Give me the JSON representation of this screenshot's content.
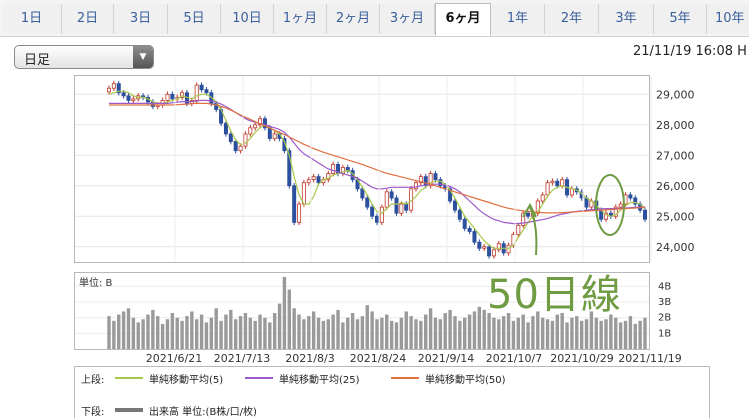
{
  "tabs": [
    {
      "label": "1日",
      "active": false
    },
    {
      "label": "2日",
      "active": false
    },
    {
      "label": "3日",
      "active": false
    },
    {
      "label": "5日",
      "active": false
    },
    {
      "label": "10日",
      "active": false
    },
    {
      "label": "1ヶ月",
      "active": false
    },
    {
      "label": "2ヶ月",
      "active": false
    },
    {
      "label": "3ヶ月",
      "active": false
    },
    {
      "label": "6ヶ月",
      "active": true
    },
    {
      "label": "1年",
      "active": false
    },
    {
      "label": "2年",
      "active": false
    },
    {
      "label": "3年",
      "active": false
    },
    {
      "label": "5年",
      "active": false
    },
    {
      "label": "10年",
      "active": false
    }
  ],
  "period_select": {
    "value": "日足"
  },
  "timestamp": "21/11/19 16:08 H",
  "annotation": "50日線",
  "colors": {
    "up": "#ffffff",
    "down": "#2c4f9e",
    "candle_up_border": "#c0392b",
    "ma5": "#a7c84a",
    "ma25": "#9b59c9",
    "ma50": "#e07040",
    "volume": "#9a9a9a",
    "annotation": "#6f9b43"
  },
  "chart_data": [
    {
      "type": "candlestick",
      "title": "",
      "y_ticks": [
        "29,000",
        "28,000",
        "27,000",
        "26,000",
        "25,000",
        "24,000"
      ],
      "ylim": [
        23500,
        29600
      ],
      "x_ticks": [
        "2021/6/21",
        "2021/7/13",
        "2021/8/3",
        "2021/8/24",
        "2021/9/14",
        "2021/10/7",
        "2021/10/29",
        "2021/11/19"
      ],
      "close": [
        29200,
        29350,
        29050,
        28950,
        28800,
        28850,
        28950,
        28900,
        28750,
        28600,
        28650,
        28800,
        29000,
        28850,
        28900,
        29050,
        28700,
        28800,
        29300,
        29150,
        29050,
        28700,
        28500,
        28050,
        27700,
        27450,
        27150,
        27300,
        27700,
        27900,
        28000,
        28200,
        27900,
        27550,
        27700,
        27550,
        27150,
        26000,
        24800,
        25400,
        26100,
        26200,
        26300,
        26100,
        26200,
        26400,
        26700,
        26400,
        26600,
        26500,
        26200,
        25900,
        25600,
        25300,
        25000,
        24800,
        25300,
        25800,
        25600,
        25100,
        25400,
        25200,
        25900,
        26100,
        26300,
        26000,
        26400,
        26200,
        26000,
        25900,
        25500,
        25200,
        24900,
        24600,
        24500,
        24150,
        23950,
        24000,
        23700,
        23900,
        24100,
        23800,
        24050,
        24400,
        24700,
        25100,
        25000,
        25100,
        25500,
        25700,
        26100,
        26150,
        26000,
        26200,
        25700,
        25900,
        25800,
        25600,
        25300,
        25500,
        25200,
        24900,
        25100,
        25000,
        25300,
        25400,
        25700,
        25600,
        25400,
        25200,
        24900
      ],
      "ma5": [
        29000,
        29050,
        29100,
        29100,
        29050,
        28950,
        28900,
        28900,
        28850,
        28750,
        28700,
        28700,
        28750,
        28800,
        28850,
        28950,
        28900,
        28850,
        28950,
        29000,
        29000,
        28900,
        28750,
        28500,
        28150,
        27800,
        27500,
        27350,
        27400,
        27550,
        27750,
        27900,
        28000,
        27900,
        27800,
        27700,
        27450,
        27000,
        26300,
        25700,
        25400,
        25400,
        25650,
        26050,
        26200,
        26250,
        26350,
        26400,
        26450,
        26500,
        26400,
        26200,
        25950,
        25700,
        25400,
        25150,
        25100,
        25250,
        25400,
        25400,
        25450,
        25400,
        25500,
        25650,
        25850,
        25950,
        26100,
        26150,
        26150,
        26050,
        25850,
        25600,
        25300,
        25000,
        24800,
        24600,
        24400,
        24200,
        24050,
        23950,
        23950,
        23950,
        23950,
        24050,
        24300,
        24550,
        24800,
        25000,
        25150,
        25400,
        25650,
        25850,
        25950,
        26000,
        25950,
        25900,
        25850,
        25750,
        25600,
        25500,
        25350,
        25200,
        25050,
        25000,
        25050,
        25200,
        25350,
        25450,
        25450,
        25400,
        25250
      ],
      "ma25": [
        28700,
        28700,
        28700,
        28700,
        28700,
        28700,
        28700,
        28700,
        28700,
        28700,
        28700,
        28700,
        28700,
        28720,
        28740,
        28760,
        28760,
        28760,
        28780,
        28800,
        28800,
        28780,
        28740,
        28680,
        28600,
        28500,
        28400,
        28300,
        28200,
        28130,
        28080,
        28040,
        28000,
        27950,
        27900,
        27850,
        27750,
        27600,
        27400,
        27200,
        27050,
        26950,
        26850,
        26750,
        26650,
        26550,
        26500,
        26450,
        26400,
        26350,
        26300,
        26250,
        26150,
        26050,
        25950,
        25900,
        25900,
        25920,
        25950,
        25950,
        25950,
        25950,
        25950,
        25960,
        26000,
        26020,
        26050,
        26050,
        26050,
        26020,
        25980,
        25900,
        25800,
        25650,
        25500,
        25350,
        25200,
        25080,
        24980,
        24900,
        24850,
        24800,
        24780,
        24760,
        24760,
        24780,
        24800,
        24830,
        24860,
        24890,
        24930,
        24980,
        25030,
        25070,
        25100,
        25130,
        25160,
        25180,
        25200,
        25220,
        25230,
        25240,
        25250,
        25250,
        25250,
        25260,
        25270,
        25280,
        25290,
        25300,
        25300
      ],
      "ma50": [
        28650,
        28650,
        28650,
        28650,
        28650,
        28650,
        28650,
        28650,
        28650,
        28650,
        28650,
        28650,
        28650,
        28650,
        28660,
        28670,
        28680,
        28690,
        28700,
        28700,
        28700,
        28680,
        28650,
        28600,
        28550,
        28480,
        28400,
        28320,
        28250,
        28180,
        28100,
        28030,
        27960,
        27890,
        27820,
        27750,
        27680,
        27600,
        27520,
        27440,
        27360,
        27290,
        27220,
        27160,
        27100,
        27050,
        27000,
        26950,
        26900,
        26850,
        26800,
        26750,
        26700,
        26640,
        26580,
        26520,
        26460,
        26410,
        26370,
        26330,
        26290,
        26250,
        26210,
        26170,
        26130,
        26090,
        26050,
        26000,
        25950,
        25900,
        25850,
        25800,
        25750,
        25700,
        25650,
        25600,
        25550,
        25500,
        25450,
        25400,
        25350,
        25300,
        25260,
        25230,
        25200,
        25180,
        25160,
        25140,
        25130,
        25120,
        25110,
        25110,
        25110,
        25120,
        25130,
        25140,
        25150,
        25160,
        25170,
        25180,
        25190,
        25200,
        25210,
        25220,
        25230,
        25240,
        25250,
        25260,
        25270,
        25280,
        25290
      ]
    },
    {
      "type": "bar",
      "title": "",
      "unit_label": "単位: B",
      "y_ticks": [
        "4B",
        "3B",
        "2B",
        "1B"
      ],
      "ylim": [
        0,
        4.6
      ],
      "values": [
        2.1,
        1.8,
        2.2,
        2.4,
        2.6,
        2.0,
        1.7,
        1.9,
        2.2,
        2.5,
        2.1,
        1.6,
        1.9,
        2.3,
        2.0,
        1.8,
        2.1,
        2.4,
        1.9,
        2.2,
        1.7,
        2.0,
        2.6,
        1.8,
        2.2,
        2.5,
        1.9,
        2.1,
        2.3,
        2.0,
        1.8,
        2.2,
        2.0,
        1.7,
        2.3,
        2.9,
        4.6,
        3.8,
        2.6,
        2.2,
        1.9,
        2.1,
        2.4,
        2.0,
        1.8,
        1.9,
        2.2,
        2.5,
        1.7,
        2.0,
        2.3,
        1.9,
        2.1,
        2.8,
        2.4,
        1.9,
        2.0,
        2.2,
        1.8,
        1.7,
        2.0,
        2.4,
        2.1,
        1.9,
        1.8,
        2.2,
        2.6,
        2.0,
        1.9,
        2.3,
        2.5,
        2.1,
        1.8,
        2.0,
        2.2,
        2.4,
        2.7,
        2.5,
        2.3,
        2.0,
        1.9,
        2.1,
        2.3,
        1.8,
        2.0,
        2.2,
        1.7,
        2.1,
        2.4,
        2.0,
        1.9,
        1.8,
        2.2,
        2.3,
        1.7,
        2.0,
        2.1,
        1.8,
        1.9,
        2.4,
        2.0,
        1.8,
        1.9,
        2.2,
        2.0,
        1.7,
        1.8,
        2.1,
        1.6,
        1.8,
        2.0
      ]
    }
  ],
  "legend": {
    "top_label": "上段:",
    "bottom_label": "下段:",
    "items": [
      {
        "label": "単純移動平均(5)"
      },
      {
        "label": "単純移動平均(25)"
      },
      {
        "label": "単純移動平均(50)"
      }
    ],
    "volume_label": "出来高 単位:(B株/口/枚)"
  }
}
